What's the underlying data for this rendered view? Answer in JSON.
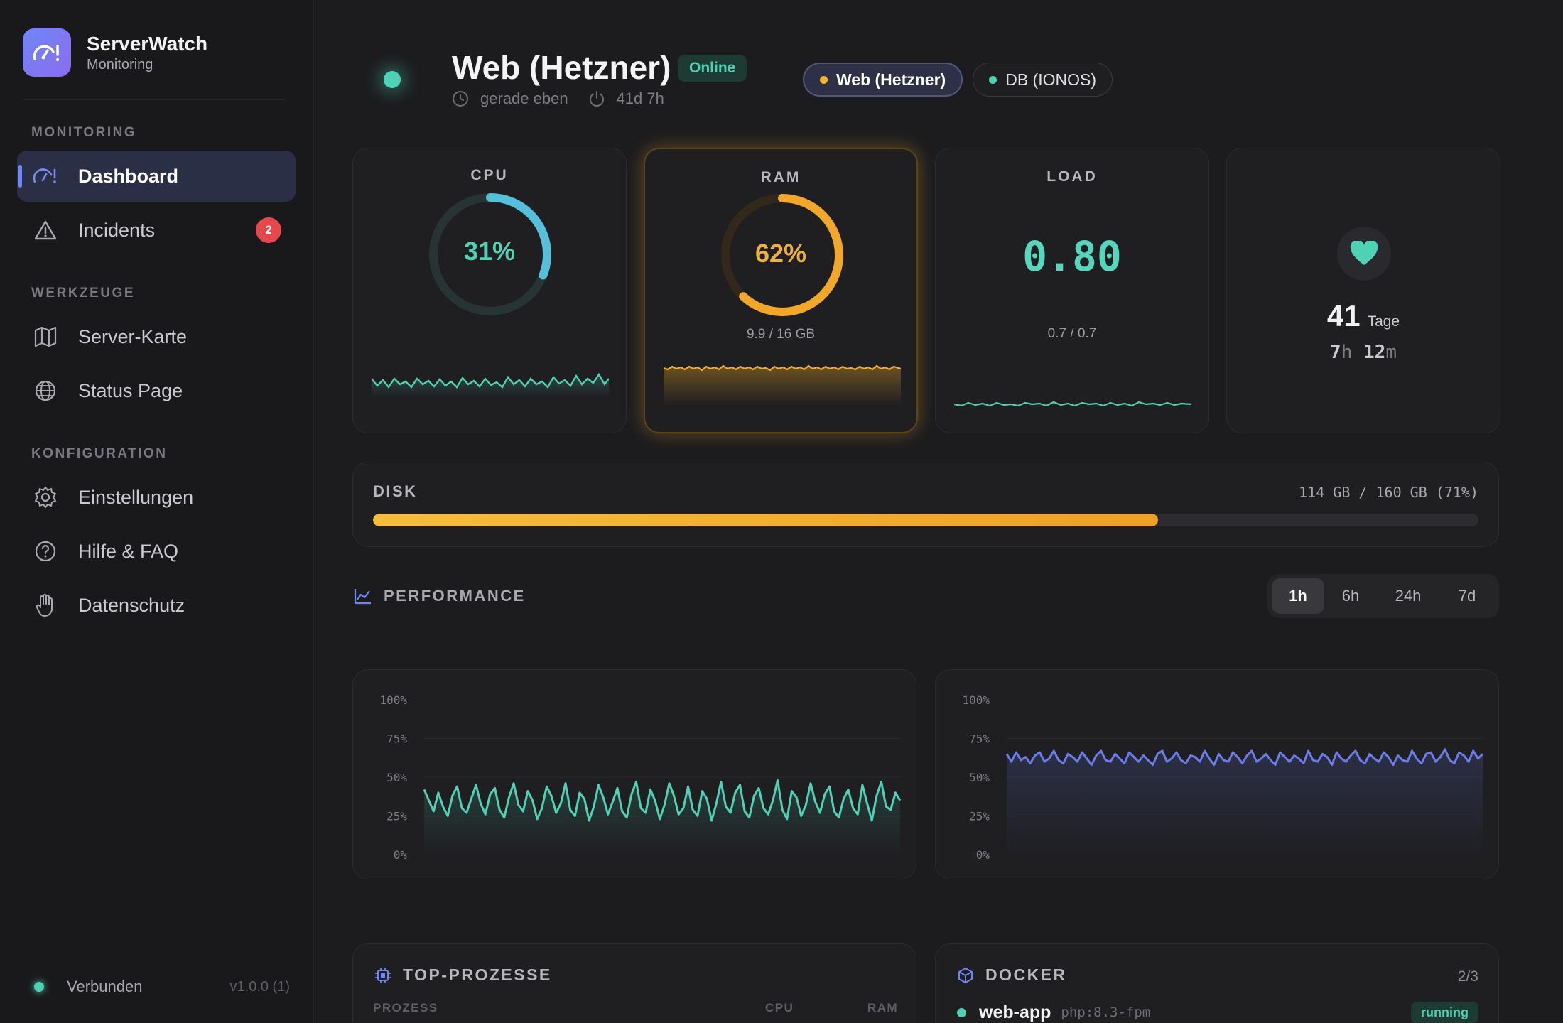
{
  "brand": {
    "name": "ServerWatch",
    "subtitle": "Monitoring"
  },
  "sidebar": {
    "sections": [
      {
        "label": "MONITORING"
      },
      {
        "label": "WERKZEUGE"
      },
      {
        "label": "KONFIGURATION"
      }
    ],
    "items": [
      {
        "label": "Dashboard",
        "icon": "gauge-icon",
        "active": true
      },
      {
        "label": "Incidents",
        "icon": "warning-icon",
        "badge": "2"
      },
      {
        "label": "Server-Karte",
        "icon": "map-icon"
      },
      {
        "label": "Status Page",
        "icon": "globe-icon"
      },
      {
        "label": "Einstellungen",
        "icon": "gear-icon"
      },
      {
        "label": "Hilfe & FAQ",
        "icon": "question-icon"
      },
      {
        "label": "Datenschutz",
        "icon": "hand-icon"
      }
    ],
    "footer": {
      "status": "Verbunden",
      "version": "v1.0.0 (1)"
    }
  },
  "header": {
    "server_name": "Web (Hetzner)",
    "status": "Online",
    "last_seen": "gerade eben",
    "uptime_short": "41d 7h",
    "server_tabs": [
      {
        "label": "Web (Hetzner)",
        "dot_color": "#f0b429",
        "active": true
      },
      {
        "label": "DB (IONOS)",
        "dot_color": "#4fd1b5",
        "active": false
      }
    ]
  },
  "metrics": {
    "cpu": {
      "label": "CPU",
      "value": "31%",
      "percent": 31,
      "color": "#56bfd9"
    },
    "ram": {
      "label": "RAM",
      "value": "62%",
      "percent": 62,
      "detail": "9.9 / 16 GB",
      "color": "#f0a72a"
    },
    "load": {
      "label": "LOAD",
      "value": "0.80",
      "detail": "0.7 / 0.7"
    },
    "uptime": {
      "days": "41",
      "days_unit": "Tage",
      "hours": "7",
      "hours_unit": "h",
      "minutes": "12",
      "minutes_unit": "m"
    }
  },
  "disk": {
    "label": "DISK",
    "info": "114 GB / 160 GB (71%)",
    "percent": 71
  },
  "performance": {
    "title": "PERFORMANCE",
    "ranges": [
      {
        "label": "1h",
        "active": true
      },
      {
        "label": "6h",
        "active": false
      },
      {
        "label": "24h",
        "active": false
      },
      {
        "label": "7d",
        "active": false
      }
    ]
  },
  "chart_data": [
    {
      "type": "line",
      "yticks": [
        "100%",
        "75%",
        "50%",
        "25%",
        "0%"
      ],
      "ylim": [
        0,
        100
      ],
      "color": "#4fd1b5",
      "values": [
        42,
        35,
        28,
        40,
        31,
        25,
        38,
        44,
        30,
        27,
        36,
        45,
        33,
        26,
        39,
        43,
        29,
        24,
        37,
        46,
        32,
        28,
        41,
        35,
        23,
        30,
        44,
        38,
        27,
        33,
        46,
        29,
        25,
        40,
        36,
        22,
        31,
        45,
        37,
        26,
        34,
        43,
        28,
        24,
        39,
        47,
        30,
        27,
        42,
        35,
        23,
        32,
        46,
        38,
        26,
        30,
        44,
        29,
        25,
        41,
        36,
        22,
        33,
        47,
        31,
        27,
        40,
        45,
        28,
        24,
        38,
        43,
        30,
        26,
        35,
        48,
        29,
        23,
        41,
        37,
        25,
        32,
        46,
        34,
        27,
        39,
        44,
        28,
        24,
        36,
        42,
        30,
        26,
        45,
        33,
        22,
        38,
        47,
        31,
        29,
        40,
        35
      ]
    },
    {
      "type": "line",
      "yticks": [
        "100%",
        "75%",
        "50%",
        "25%",
        "0%"
      ],
      "ylim": [
        0,
        100
      ],
      "color": "#6a7de8",
      "values": [
        65,
        60,
        66,
        61,
        63,
        59,
        64,
        66,
        60,
        62,
        67,
        61,
        59,
        65,
        63,
        60,
        66,
        62,
        58,
        64,
        67,
        61,
        60,
        65,
        62,
        59,
        66,
        63,
        60,
        64,
        61,
        58,
        65,
        67,
        60,
        62,
        66,
        61,
        59,
        64,
        63,
        60,
        67,
        62,
        58,
        65,
        61,
        60,
        66,
        63,
        59,
        64,
        67,
        60,
        62,
        65,
        61,
        58,
        66,
        63,
        60,
        64,
        62,
        59,
        67,
        61,
        60,
        65,
        63,
        58,
        66,
        62,
        60,
        64,
        67,
        61,
        59,
        65,
        62,
        60,
        66,
        63,
        58,
        64,
        61,
        60,
        67,
        62,
        59,
        65,
        66,
        60,
        63,
        68,
        61,
        59,
        66,
        64,
        60,
        67,
        62,
        65
      ]
    }
  ],
  "processes": {
    "title": "TOP-PROZESSE",
    "columns": [
      "PROZESS",
      "CPU",
      "RAM"
    ]
  },
  "docker": {
    "title": "DOCKER",
    "count": "2/3",
    "containers": [
      {
        "name": "web-app",
        "image": "php:8.3-fpm",
        "status": "running"
      }
    ]
  }
}
